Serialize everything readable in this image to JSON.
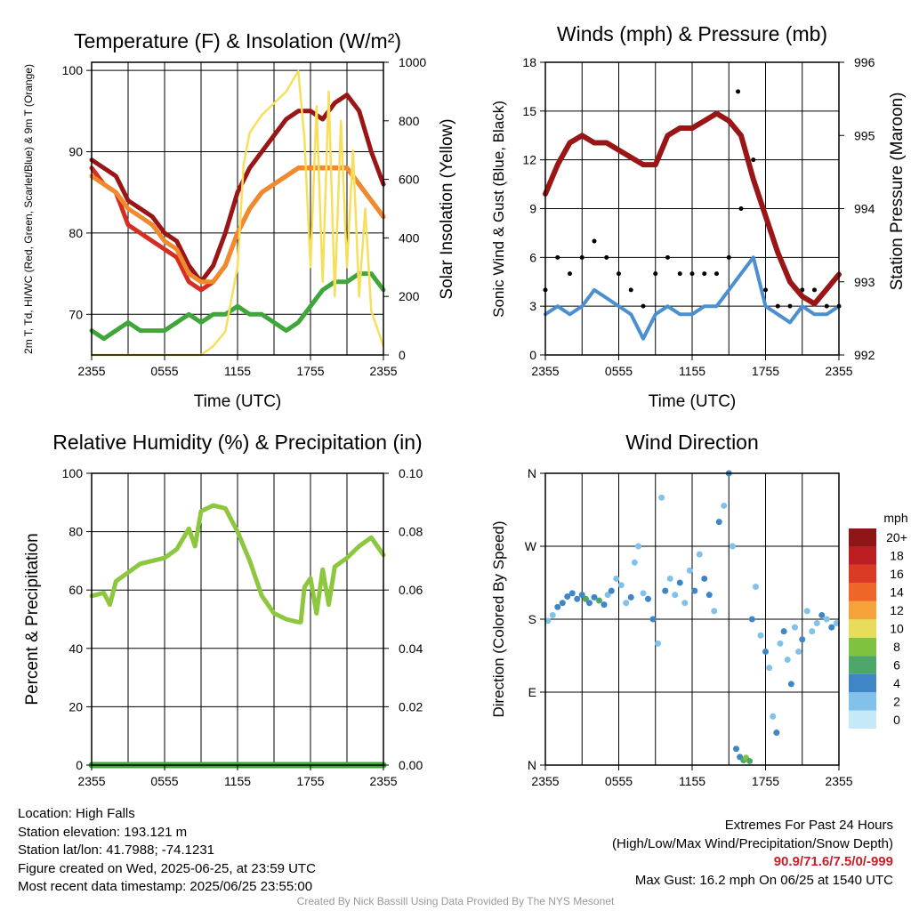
{
  "colors": {
    "temperature": "#d62d20",
    "dewpoint": "#3fa73a",
    "heat_index": "#9a1515",
    "temp_9m": "#f08a2c",
    "insolation": "#f7df5c",
    "wind_speed": "#4a90d0",
    "wind_gust": "#000000",
    "pressure": "#9a1515",
    "relative_humidity": "#8dc63f",
    "precipitation": "#3fa73a"
  },
  "chart_data": [
    {
      "type": "line",
      "title": "Temperature (F) & Insolation (W/m²)",
      "xlabel": "Time (UTC)",
      "ylabel": "2m T, Td, HI/WC (Red, Green, Scarlet/Blue) & 9m T (Orange)",
      "ylabel2": "Solar Insolation (Yellow)",
      "xlim": [
        0,
        24
      ],
      "ylim": [
        65,
        101
      ],
      "ylim2": [
        0,
        1000
      ],
      "xticks": [
        "2355",
        "0555",
        "1155",
        "1755",
        "2355"
      ],
      "yticks": [
        70,
        80,
        90,
        100
      ],
      "yticks2": [
        0,
        200,
        400,
        600,
        800,
        1000
      ],
      "grid": true,
      "series": [
        {
          "key": "temperature",
          "axis": "left",
          "x": [
            0,
            1,
            2,
            3,
            4,
            5,
            6,
            7,
            8,
            9,
            10,
            11,
            12,
            13,
            14,
            15,
            16,
            17,
            18,
            19,
            20,
            21,
            22,
            23,
            24
          ],
          "values": [
            88,
            86,
            85,
            81,
            80,
            79,
            78,
            77,
            74,
            73,
            74,
            76,
            80,
            83,
            85,
            86,
            87,
            88,
            88,
            88,
            88,
            88,
            86,
            84,
            82
          ]
        },
        {
          "key": "heat_index",
          "axis": "left",
          "x": [
            0,
            1,
            2,
            3,
            4,
            5,
            6,
            7,
            8,
            9,
            10,
            11,
            12,
            13,
            14,
            15,
            16,
            17,
            18,
            19,
            20,
            21,
            22,
            23,
            24
          ],
          "values": [
            89,
            88,
            87,
            84,
            83,
            82,
            80,
            79,
            76,
            74,
            76,
            80,
            85,
            88,
            90,
            92,
            94,
            95,
            95,
            94,
            96,
            97,
            95,
            90,
            86
          ]
        },
        {
          "key": "temp_9m",
          "axis": "left",
          "x": [
            0,
            1,
            2,
            3,
            4,
            5,
            6,
            7,
            8,
            9,
            10,
            11,
            12,
            13,
            14,
            15,
            16,
            17,
            18,
            19,
            20,
            21,
            22,
            23,
            24
          ],
          "values": [
            87,
            86,
            85,
            83,
            82,
            81,
            79,
            78,
            75,
            74,
            74,
            76,
            80,
            83,
            85,
            86,
            87,
            88,
            88,
            88,
            88,
            88,
            86,
            84,
            82
          ]
        },
        {
          "key": "dewpoint",
          "axis": "left",
          "x": [
            0,
            1,
            2,
            3,
            4,
            5,
            6,
            7,
            8,
            9,
            10,
            11,
            12,
            13,
            14,
            15,
            16,
            17,
            18,
            19,
            20,
            21,
            22,
            23,
            24
          ],
          "values": [
            68,
            67,
            68,
            69,
            68,
            68,
            68,
            69,
            70,
            69,
            70,
            70,
            71,
            70,
            70,
            69,
            68,
            69,
            71,
            73,
            74,
            74,
            75,
            75,
            73
          ]
        },
        {
          "key": "insolation",
          "axis": "right",
          "x": [
            0,
            1,
            2,
            3,
            4,
            5,
            6,
            7,
            8,
            9,
            10,
            11,
            12,
            12.5,
            13,
            14,
            15,
            16,
            17,
            17.5,
            18,
            18.5,
            19,
            19.5,
            20,
            20.5,
            21,
            21.5,
            22,
            22.5,
            23,
            24
          ],
          "values": [
            0,
            0,
            0,
            0,
            0,
            0,
            0,
            0,
            0,
            0,
            30,
            80,
            300,
            650,
            760,
            820,
            860,
            900,
            970,
            740,
            300,
            850,
            250,
            900,
            200,
            800,
            300,
            700,
            200,
            500,
            150,
            30
          ]
        }
      ]
    },
    {
      "type": "line",
      "title": "Winds (mph) & Pressure (mb)",
      "xlabel": "Time (UTC)",
      "ylabel": "Sonic Wind & Gust (Blue, Black)",
      "ylabel2": "Station Pressure (Maroon)",
      "xlim": [
        0,
        24
      ],
      "ylim": [
        0,
        18
      ],
      "ylim2": [
        992,
        996
      ],
      "xticks": [
        "2355",
        "0555",
        "1155",
        "1755",
        "2355"
      ],
      "yticks": [
        0,
        3,
        6,
        9,
        12,
        15,
        18
      ],
      "yticks2": [
        992,
        993,
        994,
        995,
        996
      ],
      "grid": true,
      "series": [
        {
          "key": "wind_speed",
          "axis": "left",
          "x": [
            0,
            1,
            2,
            3,
            4,
            5,
            6,
            7,
            8,
            9,
            10,
            11,
            12,
            13,
            14,
            15,
            16,
            17,
            18,
            19,
            20,
            21,
            22,
            23,
            24
          ],
          "values": [
            2.5,
            3,
            2.5,
            3,
            4,
            3.5,
            3,
            2.5,
            1,
            2.5,
            3,
            2.5,
            2.5,
            3,
            3,
            4,
            5,
            6,
            3,
            2.5,
            2,
            3,
            2.5,
            2.5,
            3
          ]
        },
        {
          "key": "wind_gust",
          "axis": "left",
          "x": [
            0,
            1,
            2,
            3,
            4,
            5,
            6,
            7,
            8,
            9,
            10,
            11,
            12,
            13,
            14,
            15,
            16,
            17,
            18,
            19,
            20,
            21,
            22,
            23,
            24
          ],
          "values": [
            4,
            6,
            5,
            6,
            7,
            6,
            5,
            4,
            3,
            5,
            6,
            5,
            5,
            5,
            5,
            6,
            9,
            12,
            4,
            3,
            3,
            4,
            4,
            3,
            3
          ]
        },
        {
          "key": "pressure",
          "axis": "right",
          "x": [
            0,
            1,
            2,
            3,
            4,
            5,
            6,
            7,
            8,
            9,
            10,
            11,
            12,
            13,
            14,
            15,
            16,
            17,
            18,
            19,
            20,
            21,
            22,
            23,
            24
          ],
          "values": [
            994.2,
            994.6,
            994.9,
            995.0,
            994.9,
            994.9,
            994.8,
            994.7,
            994.6,
            994.6,
            995.0,
            995.1,
            995.1,
            995.2,
            995.3,
            995.2,
            995.0,
            994.4,
            993.9,
            993.4,
            993.0,
            992.8,
            992.7,
            992.9,
            993.1
          ]
        }
      ],
      "max_gust_point": {
        "x": 15.75,
        "y": 16.2
      }
    },
    {
      "type": "line",
      "title": "Relative Humidity (%) & Precipitation (in)",
      "xlabel": "",
      "ylabel": "Percent & Precipitation",
      "xlim": [
        0,
        24
      ],
      "ylim": [
        0,
        100
      ],
      "ylim2": [
        0,
        0.1
      ],
      "xticks": [
        "2355",
        "0555",
        "1155",
        "1755",
        "2355"
      ],
      "yticks": [
        0,
        20,
        40,
        60,
        80,
        100
      ],
      "yticks2": [
        "0.00",
        "0.02",
        "0.04",
        "0.06",
        "0.08",
        "0.10"
      ],
      "grid": true,
      "series": [
        {
          "key": "relative_humidity",
          "axis": "left",
          "x": [
            0,
            1,
            1.5,
            2,
            3,
            4,
            5,
            6,
            7,
            8,
            8.5,
            9,
            10,
            11,
            12,
            13,
            14,
            15,
            16,
            17,
            17.2,
            17.5,
            18,
            18.5,
            19,
            19.5,
            20,
            21,
            22,
            23,
            24
          ],
          "values": [
            58,
            59,
            55,
            63,
            66,
            69,
            70,
            71,
            74,
            81,
            75,
            87,
            89,
            88,
            80,
            70,
            58,
            52,
            50,
            49,
            49,
            61,
            64,
            52,
            67,
            55,
            68,
            71,
            75,
            78,
            72
          ]
        },
        {
          "key": "precipitation",
          "axis": "right",
          "x": [
            0,
            24
          ],
          "values": [
            0,
            0
          ]
        }
      ]
    },
    {
      "type": "scatter",
      "title": "Wind Direction",
      "ylabel": "Direction (Colored By Speed)",
      "xlim": [
        0,
        24
      ],
      "ylim": [
        0,
        360
      ],
      "xticks": [
        "2355",
        "0555",
        "1155",
        "1755",
        "2355"
      ],
      "yticks": [
        "N",
        "E",
        "S",
        "W",
        "N"
      ],
      "grid": true,
      "legend": {
        "title": "mph",
        "labels": [
          "0",
          "2",
          "4",
          "6",
          "8",
          "10",
          "12",
          "14",
          "16",
          "18",
          "20+"
        ],
        "colors": [
          "#c6e9f8",
          "#82c2ea",
          "#3f86c6",
          "#4fa66a",
          "#7fc242",
          "#e8dd5a",
          "#f6a43a",
          "#ef6728",
          "#db3a24",
          "#bd1e22",
          "#8e1518"
        ]
      },
      "points": [
        {
          "x": 0.2,
          "y": 178,
          "s": 2
        },
        {
          "x": 0.6,
          "y": 185,
          "s": 2
        },
        {
          "x": 1.0,
          "y": 195,
          "s": 3
        },
        {
          "x": 1.4,
          "y": 200,
          "s": 4
        },
        {
          "x": 1.8,
          "y": 208,
          "s": 4
        },
        {
          "x": 2.2,
          "y": 212,
          "s": 3
        },
        {
          "x": 2.6,
          "y": 205,
          "s": 3
        },
        {
          "x": 3.0,
          "y": 210,
          "s": 4
        },
        {
          "x": 3.3,
          "y": 205,
          "s": 5
        },
        {
          "x": 3.6,
          "y": 200,
          "s": 4
        },
        {
          "x": 4.0,
          "y": 207,
          "s": 3
        },
        {
          "x": 4.4,
          "y": 203,
          "s": 6
        },
        {
          "x": 4.8,
          "y": 198,
          "s": 4
        },
        {
          "x": 5.1,
          "y": 210,
          "s": 2
        },
        {
          "x": 5.4,
          "y": 215,
          "s": 3
        },
        {
          "x": 5.8,
          "y": 230,
          "s": 2
        },
        {
          "x": 6.2,
          "y": 222,
          "s": 1
        },
        {
          "x": 6.6,
          "y": 200,
          "s": 2
        },
        {
          "x": 7.0,
          "y": 207,
          "s": 3
        },
        {
          "x": 7.3,
          "y": 250,
          "s": 2
        },
        {
          "x": 7.6,
          "y": 270,
          "s": 1
        },
        {
          "x": 8.0,
          "y": 212,
          "s": 2
        },
        {
          "x": 8.4,
          "y": 205,
          "s": 3
        },
        {
          "x": 8.8,
          "y": 180,
          "s": 3
        },
        {
          "x": 9.2,
          "y": 150,
          "s": 2
        },
        {
          "x": 9.5,
          "y": 330,
          "s": 1
        },
        {
          "x": 9.8,
          "y": 215,
          "s": 3
        },
        {
          "x": 10.2,
          "y": 230,
          "s": 2
        },
        {
          "x": 10.6,
          "y": 210,
          "s": 2
        },
        {
          "x": 11.0,
          "y": 225,
          "s": 3
        },
        {
          "x": 11.4,
          "y": 200,
          "s": 2
        },
        {
          "x": 11.8,
          "y": 240,
          "s": 2
        },
        {
          "x": 12.2,
          "y": 215,
          "s": 3
        },
        {
          "x": 12.6,
          "y": 260,
          "s": 2
        },
        {
          "x": 13.0,
          "y": 230,
          "s": 3
        },
        {
          "x": 13.4,
          "y": 210,
          "s": 3
        },
        {
          "x": 13.8,
          "y": 190,
          "s": 2
        },
        {
          "x": 14.2,
          "y": 300,
          "s": 3
        },
        {
          "x": 14.6,
          "y": 320,
          "s": 2
        },
        {
          "x": 15.0,
          "y": 360,
          "s": 3
        },
        {
          "x": 15.3,
          "y": 270,
          "s": 2
        },
        {
          "x": 15.6,
          "y": 20,
          "s": 3
        },
        {
          "x": 15.9,
          "y": 10,
          "s": 4
        },
        {
          "x": 16.2,
          "y": 6,
          "s": 6
        },
        {
          "x": 16.4,
          "y": 9,
          "s": 8
        },
        {
          "x": 16.7,
          "y": 5,
          "s": 5
        },
        {
          "x": 16.9,
          "y": 180,
          "s": 4
        },
        {
          "x": 17.2,
          "y": 220,
          "s": 2
        },
        {
          "x": 17.6,
          "y": 160,
          "s": 2
        },
        {
          "x": 18.0,
          "y": 140,
          "s": 3
        },
        {
          "x": 18.3,
          "y": 120,
          "s": 2
        },
        {
          "x": 18.6,
          "y": 60,
          "s": 2
        },
        {
          "x": 18.9,
          "y": 40,
          "s": 3
        },
        {
          "x": 19.2,
          "y": 150,
          "s": 2
        },
        {
          "x": 19.5,
          "y": 165,
          "s": 3
        },
        {
          "x": 19.8,
          "y": 130,
          "s": 2
        },
        {
          "x": 20.1,
          "y": 100,
          "s": 3
        },
        {
          "x": 20.4,
          "y": 170,
          "s": 1
        },
        {
          "x": 20.7,
          "y": 140,
          "s": 2
        },
        {
          "x": 21.0,
          "y": 155,
          "s": 3
        },
        {
          "x": 21.4,
          "y": 190,
          "s": 2
        },
        {
          "x": 21.8,
          "y": 165,
          "s": 1
        },
        {
          "x": 22.2,
          "y": 175,
          "s": 2
        },
        {
          "x": 22.6,
          "y": 185,
          "s": 3
        },
        {
          "x": 23.0,
          "y": 180,
          "s": 2
        },
        {
          "x": 23.4,
          "y": 170,
          "s": 3
        },
        {
          "x": 23.8,
          "y": 175,
          "s": 2
        }
      ]
    }
  ],
  "footer": {
    "location": "Location: High Falls",
    "elevation": "Station elevation: 193.121 m",
    "latlon": "Station lat/lon: 41.7988; -74.1231",
    "created": "Figure created on Wed, 2025-06-25, at 23:59 UTC",
    "recent": "Most recent data timestamp: 2025/06/25 23:55:00",
    "extremes_title": "Extremes For Past 24 Hours",
    "extremes_desc": "(High/Low/Max Wind/Precipitation/Snow Depth)",
    "extremes_values": "90.9/71.6/7.5/0/-999",
    "max_gust": "Max Gust: 16.2 mph On 06/25 at 1540 UTC",
    "credit": "Created By Nick Bassill Using Data Provided By The NYS Mesonet"
  }
}
